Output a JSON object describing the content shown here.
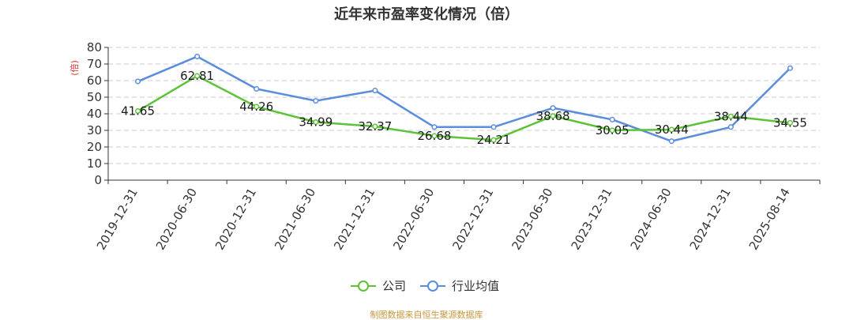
{
  "chart_data": {
    "type": "line",
    "title": "近年来市盈率变化情况（倍）",
    "ylabel": "(倍)",
    "ylim": [
      0,
      80
    ],
    "yticks": [
      0,
      10,
      20,
      30,
      40,
      50,
      60,
      70,
      80
    ],
    "grid": "horizontal-dashed",
    "legend_position": "bottom-center",
    "categories": [
      "2019-12-31",
      "2020-06-30",
      "2020-12-31",
      "2021-06-30",
      "2021-12-31",
      "2022-06-30",
      "2022-12-31",
      "2023-06-30",
      "2023-12-31",
      "2024-06-30",
      "2024-12-31",
      "2025-08-14"
    ],
    "series": [
      {
        "name": "公司",
        "color": "#5cc337",
        "values": [
          41.65,
          62.81,
          44.26,
          34.99,
          32.37,
          26.68,
          24.21,
          38.68,
          30.05,
          30.44,
          38.44,
          34.55
        ],
        "data_labels": [
          "41.65",
          "62.81",
          "44.26",
          "34.99",
          "32.37",
          "26.68",
          "24.21",
          "38.68",
          "30.05",
          "30.44",
          "38.44",
          "34.55"
        ]
      },
      {
        "name": "行业均值",
        "color": "#5a8ddc",
        "values": [
          59.5,
          74.5,
          55,
          47.8,
          54,
          32,
          32,
          43.5,
          36.5,
          23.5,
          32,
          67.5
        ]
      }
    ],
    "source": "制图数据来自恒生聚源数据库"
  }
}
